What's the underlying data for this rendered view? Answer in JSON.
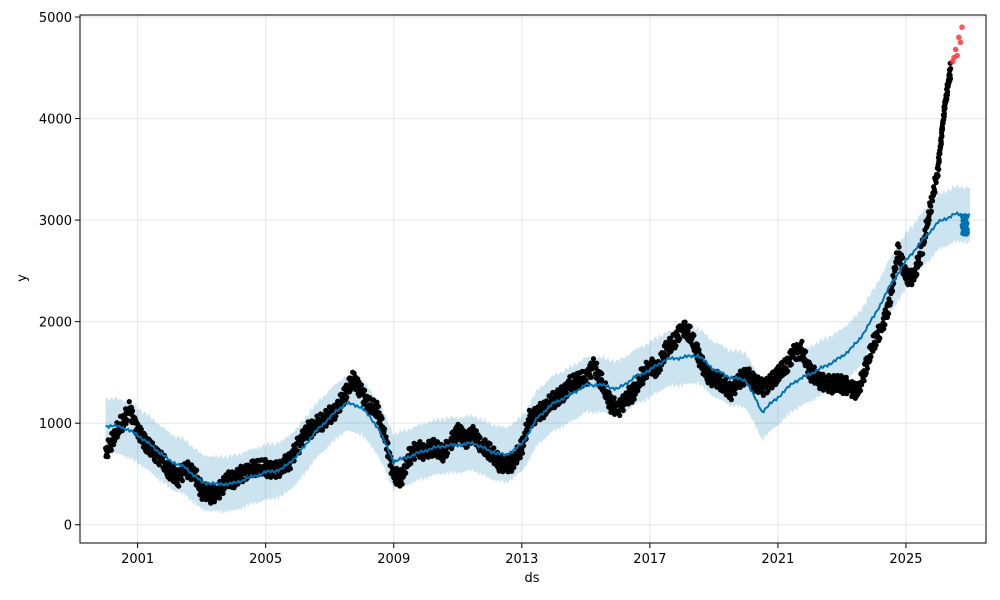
{
  "chart_data": {
    "type": "scatter",
    "title": "",
    "xlabel": "ds",
    "ylabel": "y",
    "xlim": [
      1999.2,
      2027.5
    ],
    "ylim": [
      -180,
      5020
    ],
    "grid": true,
    "x_ticks": [
      {
        "value": 2001,
        "label": "2001"
      },
      {
        "value": 2005,
        "label": "2005"
      },
      {
        "value": 2009,
        "label": "2009"
      },
      {
        "value": 2013,
        "label": "2013"
      },
      {
        "value": 2017,
        "label": "2017"
      },
      {
        "value": 2021,
        "label": "2021"
      },
      {
        "value": 2025,
        "label": "2025"
      }
    ],
    "y_ticks": [
      {
        "value": 0,
        "label": "0"
      },
      {
        "value": 1000,
        "label": "1000"
      },
      {
        "value": 2000,
        "label": "2000"
      },
      {
        "value": 3000,
        "label": "3000"
      },
      {
        "value": 4000,
        "label": "4000"
      },
      {
        "value": 5000,
        "label": "5000"
      }
    ],
    "colors": {
      "observed": "#000000",
      "forecast": "#0072B2",
      "uncertainty": "#0072B2",
      "outlier": "#ff2a2a",
      "grid": "#e6e6e6"
    },
    "forecast": [
      [
        2000.0,
        970
      ],
      [
        2000.5,
        960
      ],
      [
        2001.0,
        880
      ],
      [
        2001.5,
        760
      ],
      [
        2002.0,
        630
      ],
      [
        2002.5,
        560
      ],
      [
        2003.0,
        420
      ],
      [
        2003.5,
        400
      ],
      [
        2004.0,
        410
      ],
      [
        2004.5,
        470
      ],
      [
        2005.0,
        520
      ],
      [
        2005.5,
        550
      ],
      [
        2006.0,
        690
      ],
      [
        2006.5,
        900
      ],
      [
        2007.0,
        1060
      ],
      [
        2007.5,
        1200
      ],
      [
        2008.0,
        1160
      ],
      [
        2008.5,
        960
      ],
      [
        2009.0,
        620
      ],
      [
        2009.5,
        670
      ],
      [
        2010.0,
        730
      ],
      [
        2010.5,
        770
      ],
      [
        2011.0,
        780
      ],
      [
        2011.5,
        800
      ],
      [
        2012.0,
        720
      ],
      [
        2012.5,
        680
      ],
      [
        2013.0,
        790
      ],
      [
        2013.5,
        1060
      ],
      [
        2014.0,
        1200
      ],
      [
        2014.5,
        1280
      ],
      [
        2015.0,
        1380
      ],
      [
        2015.5,
        1380
      ],
      [
        2016.0,
        1340
      ],
      [
        2016.5,
        1450
      ],
      [
        2017.0,
        1530
      ],
      [
        2017.5,
        1630
      ],
      [
        2018.0,
        1650
      ],
      [
        2018.5,
        1670
      ],
      [
        2019.0,
        1530
      ],
      [
        2019.5,
        1450
      ],
      [
        2020.0,
        1420
      ],
      [
        2020.5,
        1110
      ],
      [
        2021.0,
        1250
      ],
      [
        2021.5,
        1400
      ],
      [
        2022.0,
        1480
      ],
      [
        2022.5,
        1560
      ],
      [
        2023.0,
        1650
      ],
      [
        2023.5,
        1800
      ],
      [
        2024.0,
        2050
      ],
      [
        2024.5,
        2350
      ],
      [
        2025.0,
        2600
      ],
      [
        2025.5,
        2800
      ],
      [
        2026.0,
        2980
      ],
      [
        2026.5,
        3060
      ],
      [
        2027.0,
        3060
      ]
    ],
    "uncertainty_halfwidth": 270,
    "observed": [
      [
        2000.0,
        700
      ],
      [
        2000.25,
        860
      ],
      [
        2000.5,
        1000
      ],
      [
        2000.75,
        1140
      ],
      [
        2001.0,
        920
      ],
      [
        2001.25,
        800
      ],
      [
        2001.5,
        720
      ],
      [
        2001.75,
        650
      ],
      [
        2002.0,
        520
      ],
      [
        2002.25,
        450
      ],
      [
        2002.5,
        560
      ],
      [
        2002.75,
        520
      ],
      [
        2003.0,
        330
      ],
      [
        2003.25,
        300
      ],
      [
        2003.5,
        320
      ],
      [
        2003.75,
        430
      ],
      [
        2004.0,
        440
      ],
      [
        2004.25,
        500
      ],
      [
        2004.5,
        550
      ],
      [
        2004.75,
        560
      ],
      [
        2005.0,
        560
      ],
      [
        2005.25,
        540
      ],
      [
        2005.5,
        570
      ],
      [
        2005.75,
        620
      ],
      [
        2006.0,
        770
      ],
      [
        2006.25,
        920
      ],
      [
        2006.5,
        960
      ],
      [
        2006.75,
        1010
      ],
      [
        2007.0,
        1080
      ],
      [
        2007.25,
        1150
      ],
      [
        2007.5,
        1300
      ],
      [
        2007.75,
        1440
      ],
      [
        2008.0,
        1300
      ],
      [
        2008.25,
        1170
      ],
      [
        2008.5,
        1120
      ],
      [
        2008.75,
        840
      ],
      [
        2009.0,
        480
      ],
      [
        2009.25,
        460
      ],
      [
        2009.5,
        680
      ],
      [
        2009.75,
        760
      ],
      [
        2010.0,
        720
      ],
      [
        2010.25,
        760
      ],
      [
        2010.5,
        700
      ],
      [
        2010.75,
        800
      ],
      [
        2011.0,
        920
      ],
      [
        2011.25,
        830
      ],
      [
        2011.5,
        900
      ],
      [
        2011.75,
        780
      ],
      [
        2012.0,
        720
      ],
      [
        2012.25,
        620
      ],
      [
        2012.5,
        600
      ],
      [
        2012.75,
        620
      ],
      [
        2013.0,
        760
      ],
      [
        2013.25,
        1050
      ],
      [
        2013.5,
        1100
      ],
      [
        2013.75,
        1150
      ],
      [
        2014.0,
        1230
      ],
      [
        2014.25,
        1280
      ],
      [
        2014.5,
        1380
      ],
      [
        2014.75,
        1420
      ],
      [
        2015.0,
        1440
      ],
      [
        2015.25,
        1580
      ],
      [
        2015.5,
        1400
      ],
      [
        2015.75,
        1200
      ],
      [
        2016.0,
        1140
      ],
      [
        2016.25,
        1250
      ],
      [
        2016.5,
        1300
      ],
      [
        2016.75,
        1460
      ],
      [
        2017.0,
        1580
      ],
      [
        2017.25,
        1530
      ],
      [
        2017.5,
        1720
      ],
      [
        2017.75,
        1800
      ],
      [
        2018.0,
        1950
      ],
      [
        2018.25,
        1880
      ],
      [
        2018.5,
        1680
      ],
      [
        2018.75,
        1500
      ],
      [
        2019.0,
        1440
      ],
      [
        2019.25,
        1400
      ],
      [
        2019.5,
        1300
      ],
      [
        2019.75,
        1420
      ],
      [
        2020.0,
        1480
      ],
      [
        2020.25,
        1400
      ],
      [
        2020.5,
        1350
      ],
      [
        2020.75,
        1400
      ],
      [
        2021.0,
        1480
      ],
      [
        2021.25,
        1560
      ],
      [
        2021.5,
        1700
      ],
      [
        2021.75,
        1720
      ],
      [
        2022.0,
        1500
      ],
      [
        2022.25,
        1440
      ],
      [
        2022.5,
        1400
      ],
      [
        2022.75,
        1380
      ],
      [
        2023.0,
        1380
      ],
      [
        2023.25,
        1360
      ],
      [
        2023.5,
        1320
      ],
      [
        2023.75,
        1550
      ],
      [
        2024.0,
        1800
      ],
      [
        2024.25,
        1950
      ],
      [
        2024.5,
        2200
      ],
      [
        2024.75,
        2700
      ],
      [
        2025.0,
        2450
      ],
      [
        2025.25,
        2450
      ],
      [
        2025.5,
        2700
      ],
      [
        2025.75,
        3100
      ],
      [
        2026.0,
        3500
      ],
      [
        2026.1,
        3800
      ],
      [
        2026.2,
        4100
      ],
      [
        2026.3,
        4300
      ],
      [
        2026.4,
        4500
      ]
    ],
    "outliers": [
      [
        2026.45,
        4560
      ],
      [
        2026.5,
        4600
      ],
      [
        2026.55,
        4680
      ],
      [
        2026.6,
        4620
      ],
      [
        2026.65,
        4800
      ],
      [
        2026.7,
        4750
      ],
      [
        2026.75,
        4900
      ]
    ]
  }
}
